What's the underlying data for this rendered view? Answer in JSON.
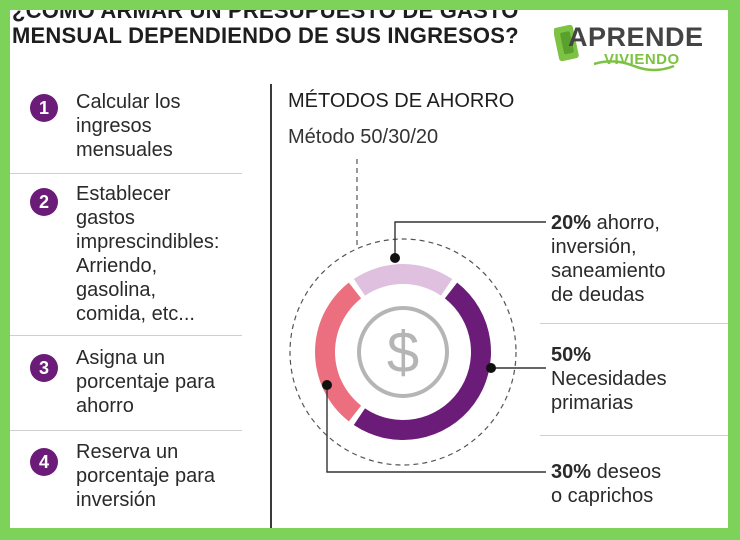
{
  "header": {
    "title_line1": "¿CÓMO ARMAR UN PRESUPUESTO DE GASTO",
    "title_line2": "MENSUAL DEPENDIENDO DE SUS INGRESOS?"
  },
  "logo": {
    "line1": "APRENDE",
    "line2": "VIVIENDO"
  },
  "steps": [
    {
      "number": "1",
      "lines": [
        "Calcular los",
        "ingresos",
        "mensuales"
      ]
    },
    {
      "number": "2",
      "lines": [
        "Establecer",
        "gastos",
        "imprescindibles:",
        "Arriendo,",
        "gasolina,",
        "comida, etc..."
      ]
    },
    {
      "number": "3",
      "lines": [
        "Asigna un",
        "porcentaje para",
        "ahorro"
      ]
    },
    {
      "number": "4",
      "lines": [
        "Reserva un",
        "porcentaje para",
        "inversión"
      ]
    }
  ],
  "methods": {
    "title": "MÉTODOS DE AHORRO",
    "method_name": "Método 50/30/20"
  },
  "chart_data": {
    "type": "pie",
    "categories": [
      "ahorro, inversión, saneamiento de deudas",
      "Necesidades primarias",
      "deseos o caprichos"
    ],
    "values": [
      20,
      50,
      30
    ],
    "colors": [
      "#dfc1df",
      "#6b1c78",
      "#ec6f80"
    ],
    "center_symbol": "$"
  },
  "legend": [
    {
      "pct": "20%",
      "lines": [
        " ahorro,",
        "inversión,",
        "saneamiento",
        "de deudas"
      ]
    },
    {
      "pct": "50%",
      "lines": [
        "",
        "Necesidades",
        "primarias"
      ]
    },
    {
      "pct": "30%",
      "lines": [
        " deseos",
        "o caprichos"
      ]
    }
  ]
}
